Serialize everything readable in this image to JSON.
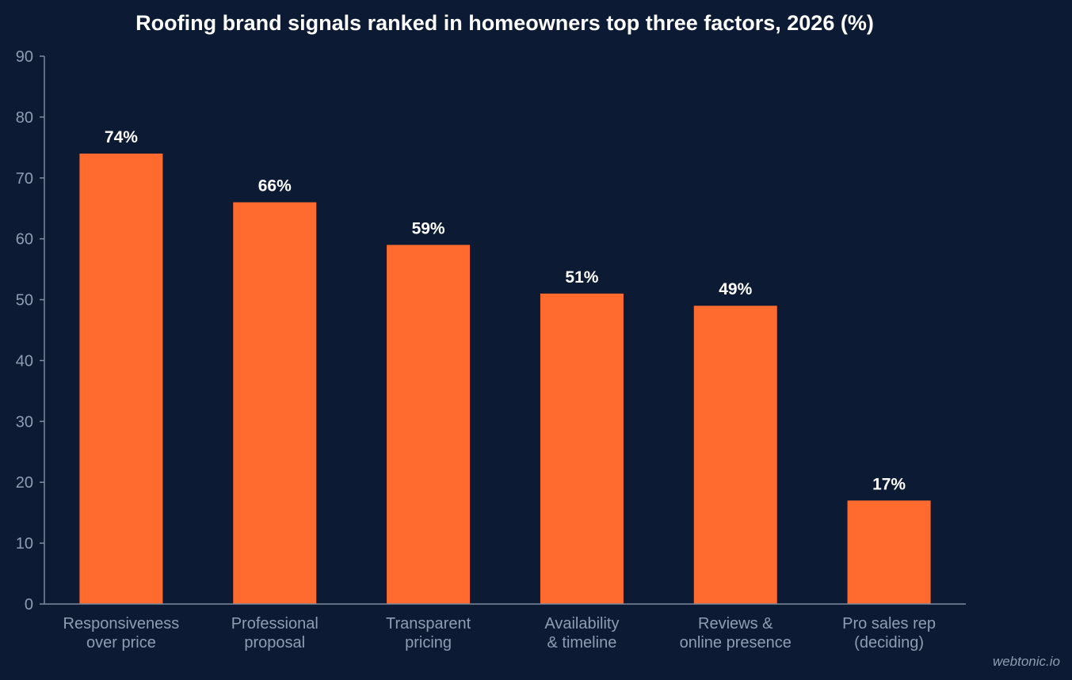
{
  "chart_data": {
    "type": "bar",
    "title": "Roofing brand signals ranked in homeowners top three factors, 2026 (%)",
    "categories": [
      [
        "Responsiveness",
        "over price"
      ],
      [
        "Professional",
        "proposal"
      ],
      [
        "Transparent",
        "pricing"
      ],
      [
        "Availability",
        "& timeline"
      ],
      [
        "Reviews &",
        "online presence"
      ],
      [
        "Pro sales rep",
        "(deciding)"
      ]
    ],
    "values": [
      74,
      66,
      59,
      51,
      49,
      17
    ],
    "value_labels": [
      "74%",
      "66%",
      "59%",
      "51%",
      "49%",
      "17%"
    ],
    "xlabel": "",
    "ylabel": "",
    "ylim": [
      0,
      90
    ],
    "yticks": [
      0,
      10,
      20,
      30,
      40,
      50,
      60,
      70,
      80,
      90
    ],
    "grid": false,
    "legend": "none",
    "colors": {
      "background": "#0c1b33",
      "bar": "#ff6b2f",
      "axis": "#7d8aa0",
      "tick_label": "#8f9db3",
      "title": "#ffffff",
      "value_label": "#ffffff"
    }
  },
  "watermark": "webtonic.io"
}
